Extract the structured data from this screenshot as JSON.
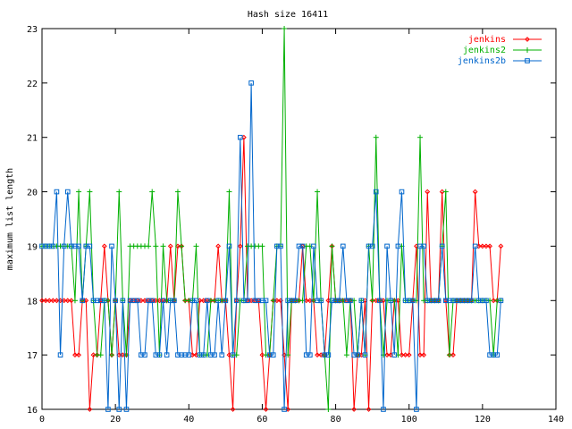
{
  "chart_data": {
    "type": "line",
    "title": "Hash size 16411",
    "xlabel": "",
    "ylabel": "maximum list length",
    "xlim": [
      0,
      140
    ],
    "ylim": [
      16,
      23
    ],
    "xticks": [
      0,
      20,
      40,
      60,
      80,
      100,
      120,
      140
    ],
    "yticks": [
      16,
      17,
      18,
      19,
      20,
      21,
      22,
      23
    ],
    "grid": false,
    "legend_position": "top-right",
    "series": [
      {
        "name": "jenkins",
        "color": "#ff0000",
        "marker": "diamond",
        "x": [
          0,
          1,
          2,
          3,
          4,
          5,
          6,
          7,
          8,
          9,
          10,
          11,
          12,
          13,
          14,
          15,
          16,
          17,
          18,
          19,
          20,
          21,
          22,
          23,
          24,
          25,
          26,
          27,
          28,
          29,
          30,
          31,
          32,
          33,
          34,
          35,
          36,
          37,
          38,
          39,
          40,
          41,
          42,
          43,
          44,
          45,
          46,
          47,
          48,
          49,
          50,
          51,
          52,
          53,
          54,
          55,
          56,
          57,
          58,
          59,
          60,
          61,
          62,
          63,
          64,
          65,
          66,
          67,
          68,
          69,
          70,
          71,
          72,
          73,
          74,
          75,
          76,
          77,
          78,
          79,
          80,
          81,
          82,
          83,
          84,
          85,
          86,
          87,
          88,
          89,
          90,
          91,
          92,
          93,
          94,
          95,
          96,
          97,
          98,
          99,
          100,
          101,
          102,
          103,
          104,
          105,
          106,
          107,
          108,
          109,
          110,
          111,
          112,
          113,
          114,
          115,
          116,
          117,
          118,
          119,
          120,
          121,
          122,
          123,
          124,
          125
        ],
        "y": [
          18,
          18,
          18,
          18,
          18,
          18,
          18,
          18,
          18,
          17,
          17,
          18,
          18,
          16,
          17,
          17,
          18,
          19,
          18,
          17,
          18,
          17,
          17,
          17,
          18,
          18,
          18,
          18,
          18,
          18,
          18,
          18,
          18,
          18,
          18,
          19,
          18,
          19,
          19,
          18,
          18,
          17,
          17,
          18,
          18,
          18,
          18,
          18,
          19,
          18,
          18,
          17,
          16,
          18,
          19,
          21,
          18,
          18,
          18,
          18,
          17,
          16,
          17,
          18,
          18,
          18,
          17,
          16,
          18,
          18,
          18,
          19,
          18,
          18,
          18,
          17,
          17,
          17,
          18,
          19,
          18,
          18,
          18,
          18,
          18,
          16,
          17,
          17,
          18,
          16,
          18,
          18,
          18,
          18,
          17,
          17,
          18,
          18,
          17,
          17,
          17,
          18,
          19,
          17,
          17,
          20,
          18,
          18,
          18,
          20,
          18,
          17,
          17,
          18,
          18,
          18,
          18,
          18,
          20,
          19,
          19,
          19,
          19,
          18,
          18,
          19
        ]
      },
      {
        "name": "jenkins2",
        "color": "#00b000",
        "marker": "plus",
        "x": [
          0,
          1,
          2,
          3,
          4,
          5,
          6,
          7,
          8,
          9,
          10,
          11,
          12,
          13,
          14,
          15,
          16,
          17,
          18,
          19,
          20,
          21,
          22,
          23,
          24,
          25,
          26,
          27,
          28,
          29,
          30,
          31,
          32,
          33,
          34,
          35,
          36,
          37,
          38,
          39,
          40,
          41,
          42,
          43,
          44,
          45,
          46,
          47,
          48,
          49,
          50,
          51,
          52,
          53,
          54,
          55,
          56,
          57,
          58,
          59,
          60,
          61,
          62,
          63,
          64,
          65,
          66,
          67,
          68,
          69,
          70,
          71,
          72,
          73,
          74,
          75,
          76,
          77,
          78,
          79,
          80,
          81,
          82,
          83,
          84,
          85,
          86,
          87,
          88,
          89,
          90,
          91,
          92,
          93,
          94,
          95,
          96,
          97,
          98,
          99,
          100,
          101,
          102,
          103,
          104,
          105,
          106,
          107,
          108,
          109,
          110,
          111,
          112,
          113,
          114,
          115,
          116,
          117,
          118,
          119,
          120,
          121,
          122,
          123,
          124,
          125
        ],
        "y": [
          19,
          19,
          19,
          19,
          19,
          19,
          19,
          19,
          19,
          18,
          20,
          18,
          19,
          20,
          18,
          17,
          17,
          18,
          18,
          17,
          18,
          20,
          18,
          17,
          19,
          19,
          19,
          19,
          19,
          19,
          20,
          19,
          17,
          19,
          18,
          18,
          18,
          20,
          19,
          18,
          18,
          18,
          19,
          17,
          17,
          17,
          18,
          18,
          18,
          18,
          18,
          20,
          17,
          17,
          18,
          18,
          19,
          19,
          19,
          19,
          19,
          17,
          17,
          18,
          19,
          19,
          23,
          17,
          18,
          18,
          18,
          18,
          19,
          19,
          18,
          20,
          18,
          17,
          16,
          19,
          18,
          18,
          18,
          17,
          18,
          18,
          17,
          18,
          17,
          19,
          18,
          21,
          18,
          17,
          18,
          18,
          18,
          17,
          19,
          18,
          18,
          18,
          18,
          21,
          18,
          18,
          18,
          18,
          18,
          19,
          20,
          17,
          18,
          18,
          18,
          18,
          18,
          18,
          18,
          18,
          18,
          18,
          18,
          17,
          18,
          18
        ]
      },
      {
        "name": "jenkins2b",
        "color": "#0066cc",
        "marker": "square",
        "x": [
          0,
          1,
          2,
          3,
          4,
          5,
          6,
          7,
          8,
          9,
          10,
          11,
          12,
          13,
          14,
          15,
          16,
          17,
          18,
          19,
          20,
          21,
          22,
          23,
          24,
          25,
          26,
          27,
          28,
          29,
          30,
          31,
          32,
          33,
          34,
          35,
          36,
          37,
          38,
          39,
          40,
          41,
          42,
          43,
          44,
          45,
          46,
          47,
          48,
          49,
          50,
          51,
          52,
          53,
          54,
          55,
          56,
          57,
          58,
          59,
          60,
          61,
          62,
          63,
          64,
          65,
          66,
          67,
          68,
          69,
          70,
          71,
          72,
          73,
          74,
          75,
          76,
          77,
          78,
          79,
          80,
          81,
          82,
          83,
          84,
          85,
          86,
          87,
          88,
          89,
          90,
          91,
          92,
          93,
          94,
          95,
          96,
          97,
          98,
          99,
          100,
          101,
          102,
          103,
          104,
          105,
          106,
          107,
          108,
          109,
          110,
          111,
          112,
          113,
          114,
          115,
          116,
          117,
          118,
          119,
          120,
          121,
          122,
          123,
          124,
          125
        ],
        "y": [
          19,
          19,
          19,
          19,
          20,
          17,
          19,
          20,
          19,
          19,
          19,
          18,
          19,
          19,
          18,
          18,
          18,
          18,
          16,
          19,
          18,
          16,
          18,
          16,
          18,
          18,
          18,
          17,
          17,
          18,
          18,
          17,
          17,
          18,
          17,
          18,
          18,
          17,
          17,
          17,
          17,
          18,
          18,
          17,
          17,
          18,
          17,
          17,
          18,
          17,
          18,
          19,
          17,
          18,
          21,
          18,
          18,
          22,
          18,
          18,
          18,
          18,
          17,
          17,
          19,
          19,
          16,
          18,
          18,
          18,
          19,
          19,
          17,
          17,
          19,
          18,
          18,
          17,
          17,
          18,
          18,
          18,
          19,
          18,
          18,
          17,
          17,
          18,
          17,
          19,
          19,
          20,
          18,
          16,
          19,
          18,
          17,
          19,
          20,
          18,
          18,
          18,
          16,
          19,
          19,
          18,
          18,
          18,
          18,
          19,
          18,
          18,
          18,
          18,
          18,
          18,
          18,
          18,
          19,
          18,
          18,
          18,
          17,
          17,
          17,
          18
        ]
      }
    ]
  }
}
